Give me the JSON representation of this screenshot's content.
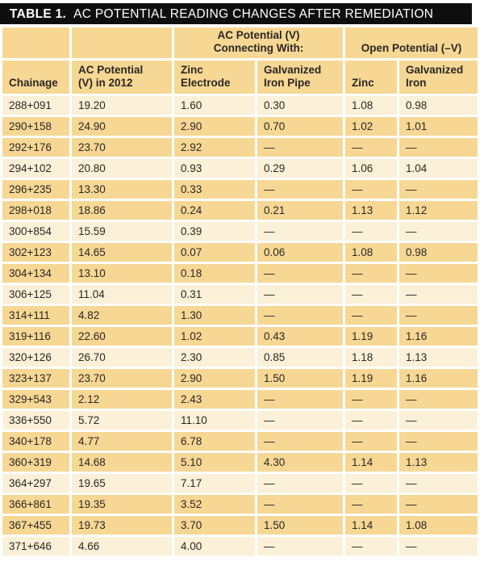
{
  "title": {
    "prefix": "TABLE 1.",
    "text": "AC POTENTIAL READING CHANGES AFTER REMEDIATION"
  },
  "table": {
    "group_headers": [
      "",
      "",
      "AC Potential (V)\nConnecting With:",
      "Open Potential (–V)"
    ],
    "columns": [
      "Chainage",
      "AC Potential\n(V) in 2012",
      "Zinc\nElectrode",
      "Galvanized\nIron Pipe",
      "Zinc",
      "Galvanized\nIron"
    ],
    "missing_value_marker": "—",
    "rows": [
      [
        "288+091",
        "19.20",
        "1.60",
        "0.30",
        "1.08",
        "0.98"
      ],
      [
        "290+158",
        "24.90",
        "2.90",
        "0.70",
        "1.02",
        "1.01"
      ],
      [
        "292+176",
        "23.70",
        "2.92",
        "—",
        "—",
        "—"
      ],
      [
        "294+102",
        "20.80",
        "0.93",
        "0.29",
        "1.06",
        "1.04"
      ],
      [
        "296+235",
        "13.30",
        "0.33",
        "—",
        "—",
        "—"
      ],
      [
        "298+018",
        "18.86",
        "0.24",
        "0.21",
        "1.13",
        "1.12"
      ],
      [
        "300+854",
        "15.59",
        "0.39",
        "—",
        "—",
        "—"
      ],
      [
        "302+123",
        "14.65",
        "0.07",
        "0.06",
        "1.08",
        "0.98"
      ],
      [
        "304+134",
        "13.10",
        "0.18",
        "—",
        "—",
        "—"
      ],
      [
        "306+125",
        "11.04",
        "0.31",
        "—",
        "—",
        "—"
      ],
      [
        "314+111",
        "4.82",
        "1.30",
        "—",
        "—",
        "—"
      ],
      [
        "319+116",
        "22.60",
        "1.02",
        "0.43",
        "1.19",
        "1.16"
      ],
      [
        "320+126",
        "26.70",
        "2.30",
        "0.85",
        "1.18",
        "1.13"
      ],
      [
        "323+137",
        "23.70",
        "2.90",
        "1.50",
        "1.19",
        "1.16"
      ],
      [
        "329+543",
        "2.12",
        "2.43",
        "—",
        "—",
        "—"
      ],
      [
        "336+550",
        "5.72",
        "11.10",
        "—",
        "—",
        "—"
      ],
      [
        "340+178",
        "4.77",
        "6.78",
        "—",
        "—",
        "—"
      ],
      [
        "360+319",
        "14.68",
        "5.10",
        "4.30",
        "1.14",
        "1.13"
      ],
      [
        "364+297",
        "19.65",
        "7.17",
        "—",
        "—",
        "—"
      ],
      [
        "366+861",
        "19.35",
        "3.52",
        "—",
        "—",
        "—"
      ],
      [
        "367+455",
        "19.73",
        "3.70",
        "1.50",
        "1.14",
        "1.08"
      ],
      [
        "371+646",
        "4.66",
        "4.00",
        "—",
        "—",
        "—"
      ]
    ]
  },
  "colors": {
    "title_bar_bg": "#0e0e0e",
    "title_bar_text": "#ffffff",
    "header_cell_bg": "#f6d794",
    "row_dark_bg": "#f6d794",
    "row_light_bg": "#fbf0d8",
    "cell_text": "#2b2723"
  }
}
